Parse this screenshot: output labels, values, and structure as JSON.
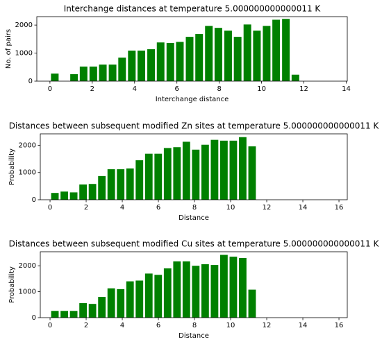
{
  "chart_data": [
    {
      "type": "bar",
      "title": "Interchange distances at temperature 5.000000000000011 K",
      "xlabel": "Interchange distance",
      "ylabel": "No. of pairs",
      "color": "#008000",
      "x": [
        0.23,
        1.14,
        1.59,
        2.05,
        2.5,
        2.96,
        3.41,
        3.87,
        4.32,
        4.78,
        5.23,
        5.69,
        6.14,
        6.6,
        7.05,
        7.51,
        7.96,
        8.42,
        8.87,
        9.33,
        9.78,
        10.24,
        10.69,
        11.15,
        11.6
      ],
      "values": [
        270,
        250,
        520,
        520,
        590,
        590,
        840,
        1090,
        1090,
        1140,
        1380,
        1360,
        1400,
        1580,
        1680,
        1970,
        1900,
        1800,
        1580,
        2020,
        1800,
        1970,
        2190,
        2220,
        230
      ],
      "xlim": [
        -0.62,
        14.05
      ],
      "xticks": [
        0,
        2,
        4,
        6,
        8,
        10,
        12,
        14
      ],
      "ylim": [
        0,
        2300
      ],
      "yticks": [
        0,
        1000,
        2000
      ]
    },
    {
      "type": "bar",
      "title": "Distances between subsequent modified Zn sites at temperature 5.000000000000011 K",
      "xlabel": "Distance",
      "ylabel": "Probability",
      "color": "#008000",
      "x": [
        0.27,
        0.79,
        1.31,
        1.83,
        2.35,
        2.87,
        3.39,
        3.91,
        4.43,
        4.95,
        5.47,
        5.99,
        6.51,
        7.03,
        7.55,
        8.07,
        8.59,
        9.11,
        9.63,
        10.15,
        10.67,
        11.19
      ],
      "values": [
        250,
        300,
        270,
        560,
        580,
        870,
        1120,
        1120,
        1150,
        1450,
        1690,
        1690,
        1900,
        1930,
        2130,
        1840,
        2020,
        2200,
        2170,
        2170,
        2300,
        1960
      ],
      "xlim": [
        -0.54,
        16.46
      ],
      "xticks": [
        0,
        2,
        4,
        6,
        8,
        10,
        12,
        14,
        16
      ],
      "ylim": [
        0,
        2420
      ],
      "yticks": [
        0,
        1000,
        2000
      ]
    },
    {
      "type": "bar",
      "title": "Distances between subsequent modified Cu sites at temperature 5.000000000000011 K",
      "xlabel": "Distance",
      "ylabel": "Probability",
      "color": "#008000",
      "x": [
        0.27,
        0.79,
        1.31,
        1.83,
        2.35,
        2.87,
        3.39,
        3.91,
        4.43,
        4.95,
        5.47,
        5.99,
        6.51,
        7.03,
        7.55,
        8.07,
        8.59,
        9.11,
        9.63,
        10.15,
        10.67,
        11.19
      ],
      "values": [
        260,
        260,
        260,
        560,
        530,
        800,
        1130,
        1100,
        1400,
        1430,
        1700,
        1650,
        1900,
        2170,
        2170,
        2000,
        2060,
        2030,
        2420,
        2350,
        2300,
        1080
      ],
      "xlim": [
        -0.54,
        16.46
      ],
      "xticks": [
        0,
        2,
        4,
        6,
        8,
        10,
        12,
        14,
        16
      ],
      "ylim": [
        0,
        2540
      ],
      "yticks": [
        0,
        1000,
        2000
      ]
    }
  ]
}
